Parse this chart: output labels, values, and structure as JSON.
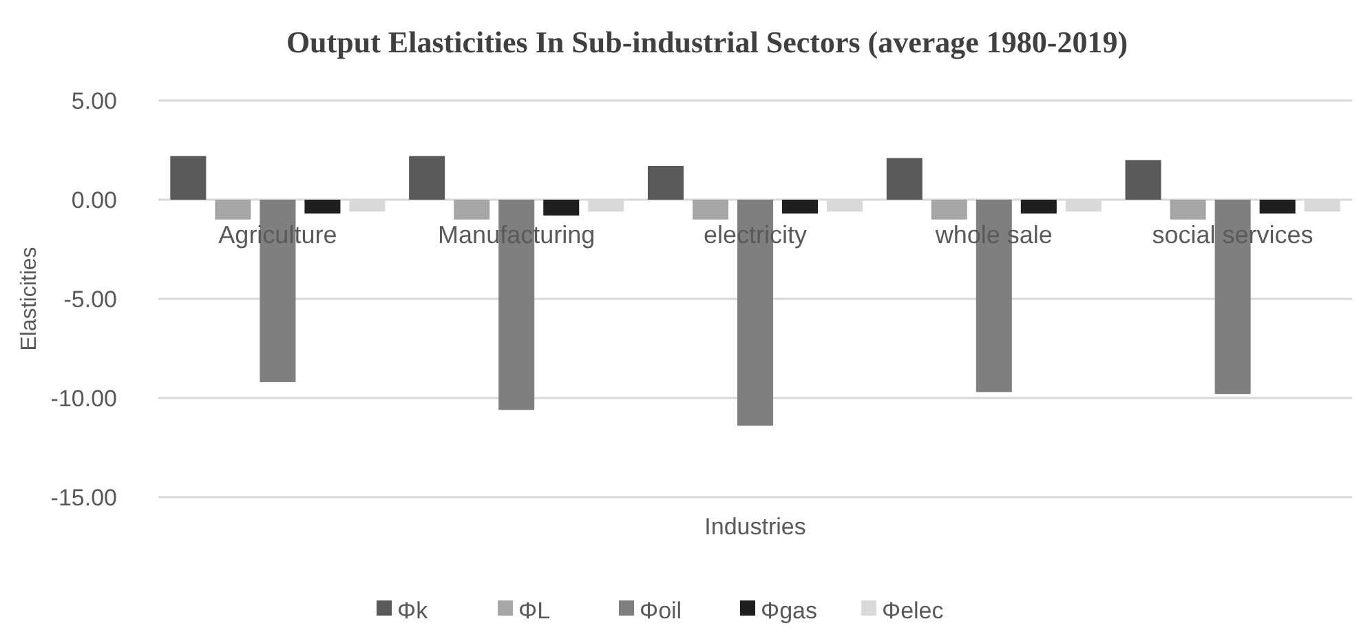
{
  "chart_data": {
    "type": "bar",
    "title": "Output Elasticities In Sub-industrial Sectors (average 1980-2019)",
    "xlabel": "Industries",
    "ylabel": "Elasticities",
    "categories": [
      "Agriculture",
      "Manufacturing",
      "electricity",
      "whole sale",
      "social services"
    ],
    "series": [
      {
        "name": "Φk",
        "color": "#595959",
        "values": [
          2.2,
          2.2,
          1.7,
          2.1,
          2.0
        ]
      },
      {
        "name": "ΦL",
        "color": "#a6a6a6",
        "values": [
          -1.0,
          -1.0,
          -1.0,
          -1.0,
          -1.0
        ]
      },
      {
        "name": "Φoil",
        "color": "#7f7f7f",
        "values": [
          -9.2,
          -10.6,
          -11.4,
          -9.7,
          -9.8
        ]
      },
      {
        "name": "Φgas",
        "color": "#1f1f1f",
        "values": [
          -0.7,
          -0.8,
          -0.7,
          -0.7,
          -0.7
        ]
      },
      {
        "name": "Φelec",
        "color": "#d9d9d9",
        "values": [
          -0.6,
          -0.6,
          -0.6,
          -0.6,
          -0.6
        ]
      }
    ],
    "ylim": [
      -15,
      5
    ],
    "yticks": [
      {
        "value": -15,
        "label": "-15.00"
      },
      {
        "value": -10,
        "label": "-10.00"
      },
      {
        "value": -5,
        "label": "-5.00"
      },
      {
        "value": 0,
        "label": "0.00"
      },
      {
        "value": 5,
        "label": "5.00"
      }
    ],
    "grid": "y",
    "legend": "bottom"
  }
}
